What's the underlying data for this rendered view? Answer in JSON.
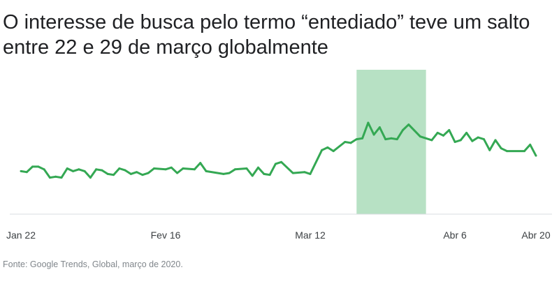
{
  "chart_data": {
    "type": "line",
    "title": "O interesse de busca pelo termo “entediado” teve um salto entre 22 e 29 de março globalmente",
    "source": "Fonte: Google Trends, Global, março de 2020.",
    "xlabel": "",
    "ylabel": "",
    "x_ticks": [
      {
        "day": 0,
        "label": "Jan 22"
      },
      {
        "day": 25,
        "label": "Fev 16"
      },
      {
        "day": 50,
        "label": "Mar 12"
      },
      {
        "day": 75,
        "label": "Abr 6"
      },
      {
        "day": 89,
        "label": "Abr 20"
      }
    ],
    "xlim": [
      0,
      89
    ],
    "ylim": [
      0,
      100
    ],
    "highlight": {
      "from_day": 58,
      "to_day": 70,
      "color": "#b7e1c4"
    },
    "series": [
      {
        "name": "entediado",
        "color": "#34a853",
        "days": [
          0,
          1,
          2,
          3,
          4,
          5,
          6,
          7,
          8,
          9,
          10,
          11,
          12,
          13,
          14,
          15,
          16,
          17,
          18,
          19,
          20,
          21,
          22,
          23,
          25,
          26,
          27,
          28,
          30,
          31,
          32,
          35,
          36,
          37,
          39,
          40,
          41,
          42,
          43,
          44,
          45,
          47,
          49,
          50,
          52,
          53,
          54,
          56,
          57,
          58,
          59,
          60,
          61,
          62,
          63,
          64,
          65,
          66,
          67,
          69,
          71,
          72,
          73,
          74,
          75,
          76,
          77,
          78,
          79,
          80,
          81,
          82,
          83,
          84,
          87,
          88,
          89
        ],
        "values": [
          47,
          46,
          52,
          52,
          49,
          40,
          41,
          40,
          50,
          47,
          49,
          47,
          40,
          49,
          48,
          44,
          43,
          50,
          48,
          44,
          46,
          43,
          45,
          50,
          49,
          51,
          45,
          50,
          49,
          56,
          47,
          44,
          45,
          49,
          50,
          42,
          51,
          44,
          43,
          55,
          57,
          45,
          46,
          44,
          70,
          73,
          69,
          79,
          78,
          82,
          83,
          100,
          87,
          95,
          82,
          83,
          82,
          92,
          98,
          85,
          81,
          89,
          86,
          92,
          79,
          81,
          89,
          80,
          84,
          82,
          70,
          81,
          72,
          69,
          69,
          76,
          64
        ]
      }
    ]
  }
}
